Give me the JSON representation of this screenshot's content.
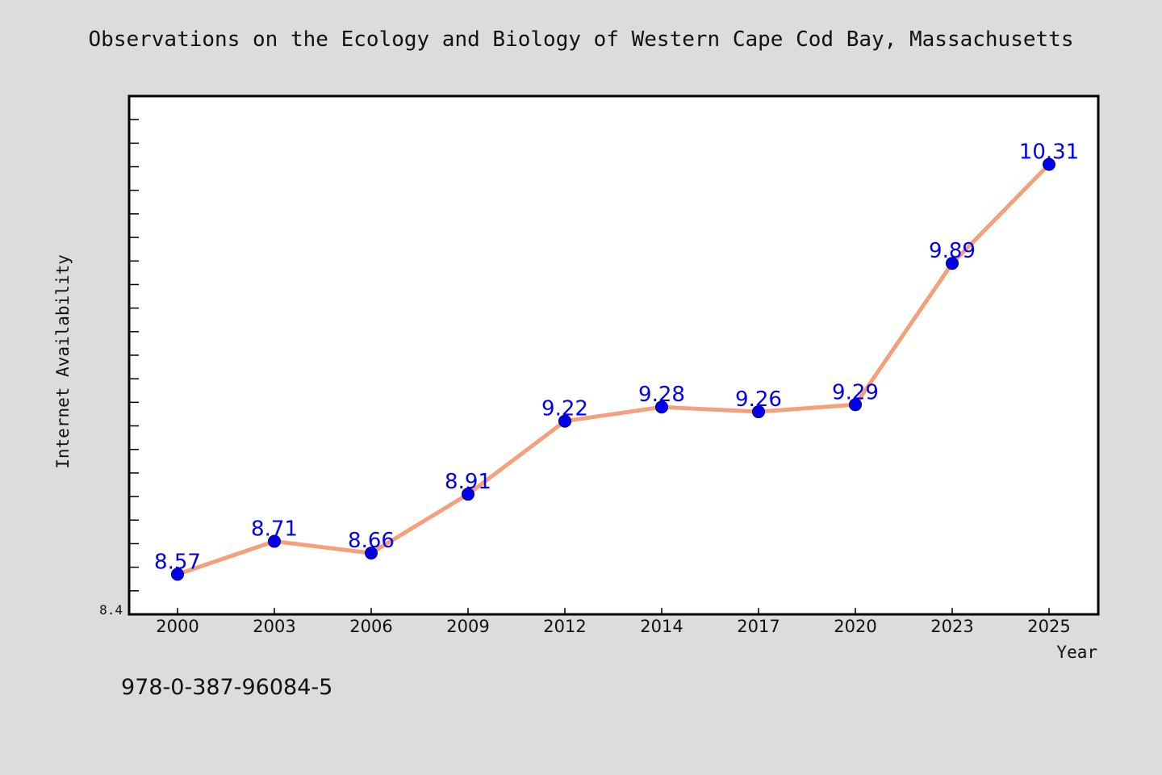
{
  "isbn_text": "978-0-387-96084-5",
  "chart_data": {
    "type": "line",
    "title": "Observations on the Ecology and Biology of Western Cape Cod Bay, Massachusetts",
    "xlabel": "Year",
    "ylabel": "Internet Availability",
    "categories": [
      "2000",
      "2003",
      "2006",
      "2009",
      "2012",
      "2014",
      "2017",
      "2020",
      "2023",
      "2025"
    ],
    "series": [
      {
        "values": [
          8.57,
          8.71,
          8.66,
          8.91,
          9.22,
          9.28,
          9.26,
          9.29,
          9.89,
          10.31
        ],
        "data_labels": [
          "8.57",
          "8.71",
          "8.66",
          "8.91",
          "9.22",
          "9.28",
          "9.26",
          "9.29",
          "9.89",
          "10.31"
        ]
      }
    ],
    "ylim": [
      8.4,
      10.6
    ],
    "y_tick_labels": [
      {
        "value": 8.4,
        "label": "8.4"
      }
    ],
    "y_minor_tick_step": 0.1,
    "grid": false,
    "legend": "none",
    "colors": {
      "line": "#f4a07a",
      "marker": "#0000ee",
      "data_label": "#0000ee",
      "background": "#dcdcdc",
      "plot_background": "#ffffff",
      "axis": "#000000"
    }
  }
}
